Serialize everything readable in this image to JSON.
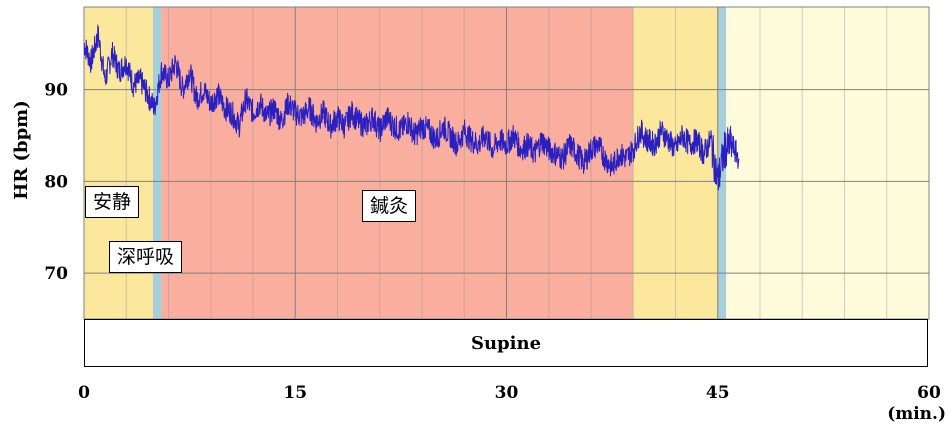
{
  "chart_data": {
    "type": "line",
    "ylabel": "HR (bpm)",
    "xunit": "(min.)",
    "xlim": [
      0,
      60
    ],
    "ylim": [
      65,
      99
    ],
    "x_ticks": [
      0,
      15,
      30,
      45,
      60
    ],
    "y_ticks": [
      70,
      80,
      90
    ],
    "series_color": "#2a1fc0",
    "phases": [
      {
        "label": "安静",
        "start": 0,
        "end": 4.9,
        "color": "#fce89c"
      },
      {
        "label": "深呼吸",
        "start": 4.9,
        "end": 5.5,
        "color": "#a7cfd9"
      },
      {
        "label": "鍼灸",
        "start": 5.5,
        "end": 39,
        "color": "#f9ae9e"
      },
      {
        "label": "",
        "start": 39,
        "end": 45,
        "color": "#fce89c"
      },
      {
        "label": "",
        "start": 45,
        "end": 45.6,
        "color": "#a7cfd9"
      },
      {
        "label": "",
        "start": 45.6,
        "end": 60,
        "color": "#fdfbd9"
      }
    ],
    "labels": {
      "rest": "安静",
      "deep_breath": "深呼吸",
      "acupuncture": "鍼灸"
    },
    "posture": "Supine",
    "series": [
      {
        "x": [
          0,
          0.5,
          1,
          1.5,
          2,
          2.5,
          3,
          3.5,
          4,
          4.5,
          5,
          5.5,
          6,
          6.5,
          7,
          7.5,
          8,
          8.5,
          9,
          9.5,
          10,
          10.5,
          11,
          11.5,
          12,
          12.5,
          13,
          13.5,
          14,
          14.5,
          15,
          15.5,
          16,
          16.5,
          17,
          17.5,
          18,
          18.5,
          19,
          19.5,
          20,
          20.5,
          21,
          21.5,
          22,
          22.5,
          23,
          23.5,
          24,
          24.5,
          25,
          25.5,
          26,
          26.5,
          27,
          27.5,
          28,
          28.5,
          29,
          29.5,
          30,
          30.5,
          31,
          31.5,
          32,
          32.5,
          33,
          33.5,
          34,
          34.5,
          35,
          35.5,
          36,
          36.5,
          37,
          37.5,
          38,
          38.5,
          39,
          39.5,
          40,
          40.5,
          41,
          41.5,
          42,
          42.5,
          43,
          43.5,
          44,
          44.5,
          45,
          45.5,
          46,
          46.5
        ],
        "y": [
          95,
          93,
          96,
          91,
          94,
          92,
          93,
          90.5,
          91,
          89.5,
          88,
          92,
          91,
          93,
          90,
          92,
          89,
          90,
          88.5,
          89.5,
          88,
          87.5,
          86,
          89,
          87.5,
          88.5,
          87,
          88,
          86.5,
          88.5,
          87.5,
          87,
          88,
          86.5,
          87.5,
          86,
          87,
          86,
          87.5,
          86.5,
          86,
          87,
          85.5,
          87,
          86,
          85.5,
          86.5,
          85,
          86,
          85.5,
          84.5,
          86,
          85,
          84,
          85.5,
          84.5,
          84,
          85,
          83.5,
          84.5,
          84,
          85,
          83.5,
          84,
          83,
          84.5,
          83.5,
          83,
          82.5,
          84,
          83,
          82,
          83.5,
          84,
          82.5,
          81.5,
          83,
          82.5,
          83.5,
          85.5,
          84.5,
          84,
          85.5,
          84.5,
          83.5,
          85,
          84,
          84.5,
          83,
          84.5,
          80,
          83.5,
          84,
          82.5
        ]
      }
    ]
  }
}
